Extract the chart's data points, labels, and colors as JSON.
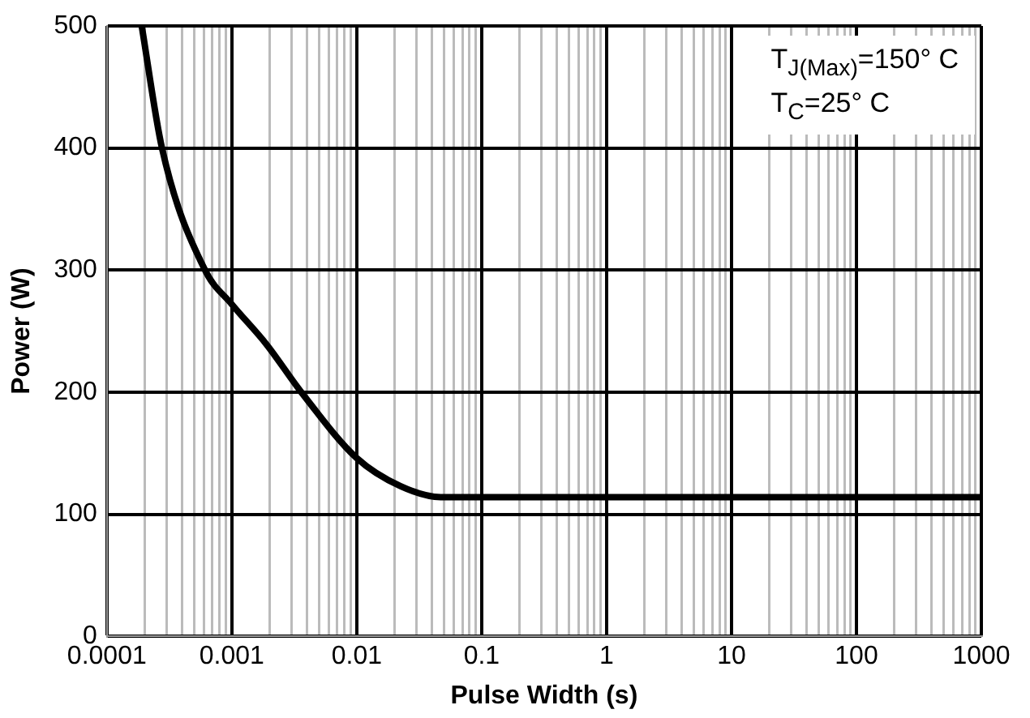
{
  "chart_data": {
    "type": "line",
    "xlabel": "Pulse Width (s)",
    "ylabel": "Power (W)",
    "annotations": [
      "T$_{J(Max)}$=150° C",
      "T$_{C}$=25° C"
    ],
    "series": [
      {
        "color": "#000000",
        "x": [
          0.00019,
          0.000276,
          0.00061,
          0.001,
          0.0019,
          0.0036,
          0.01,
          0.0224,
          0.047,
          0.1,
          1,
          10,
          100,
          1000
        ],
        "values": [
          500,
          400,
          300,
          272,
          239,
          200,
          146,
          123,
          114,
          114,
          114,
          114,
          114,
          114
        ]
      }
    ],
    "log": "x",
    "xlim": [
      0.0001,
      1000
    ],
    "ylim": [
      0,
      500
    ],
    "yticks": [
      0,
      100,
      200,
      300,
      400,
      500
    ],
    "xticks": [
      {
        "value": 0.0001,
        "label": "0.0001"
      },
      {
        "value": 0.0002,
        "label": null
      },
      {
        "value": 0.0003,
        "label": null
      },
      {
        "value": 0.0004,
        "label": null
      },
      {
        "value": 0.0005,
        "label": null
      },
      {
        "value": 0.0006,
        "label": null
      },
      {
        "value": 0.0007,
        "label": null
      },
      {
        "value": 0.0008,
        "label": null
      },
      {
        "value": 0.0009,
        "label": null
      },
      {
        "value": 0.001,
        "label": "0.001"
      },
      {
        "value": 0.002,
        "label": null
      },
      {
        "value": 0.003,
        "label": null
      },
      {
        "value": 0.004,
        "label": null
      },
      {
        "value": 0.005,
        "label": null
      },
      {
        "value": 0.006,
        "label": null
      },
      {
        "value": 0.007,
        "label": null
      },
      {
        "value": 0.008,
        "label": null
      },
      {
        "value": 0.009,
        "label": null
      },
      {
        "value": 0.01,
        "label": "0.01"
      },
      {
        "value": 0.02,
        "label": null
      },
      {
        "value": 0.03,
        "label": null
      },
      {
        "value": 0.04,
        "label": null
      },
      {
        "value": 0.05,
        "label": null
      },
      {
        "value": 0.06,
        "label": null
      },
      {
        "value": 0.07,
        "label": null
      },
      {
        "value": 0.08,
        "label": null
      },
      {
        "value": 0.09,
        "label": null
      },
      {
        "value": 0.1,
        "label": "0.1"
      },
      {
        "value": 0.2,
        "label": null
      },
      {
        "value": 0.3,
        "label": null
      },
      {
        "value": 0.4,
        "label": null
      },
      {
        "value": 0.5,
        "label": null
      },
      {
        "value": 0.6,
        "label": null
      },
      {
        "value": 0.7,
        "label": null
      },
      {
        "value": 0.8,
        "label": null
      },
      {
        "value": 0.9,
        "label": null
      },
      1,
      {
        "value": 2,
        "label": null
      },
      {
        "value": 3,
        "label": null
      },
      {
        "value": 4,
        "label": null
      },
      {
        "value": 5,
        "label": null
      },
      {
        "value": 6,
        "label": null
      },
      {
        "value": 7,
        "label": null
      },
      {
        "value": 8,
        "label": null
      },
      {
        "value": 9,
        "label": null
      },
      10,
      {
        "value": 20,
        "label": null
      },
      {
        "value": 30,
        "label": null
      },
      {
        "value": 40,
        "label": null
      },
      {
        "value": 50,
        "label": null
      },
      {
        "value": 60,
        "label": null
      },
      {
        "value": 70,
        "label": null
      },
      {
        "value": 80,
        "label": null
      },
      {
        "value": 90,
        "label": null
      },
      100,
      {
        "value": 200,
        "label": null
      },
      {
        "value": 300,
        "label": null
      },
      {
        "value": 400,
        "label": null
      },
      {
        "value": 500,
        "label": null
      },
      {
        "value": 600,
        "label": null
      },
      {
        "value": 700,
        "label": null
      },
      {
        "value": 800,
        "label": null
      },
      {
        "value": 900,
        "label": null
      },
      1000
    ],
    "grid": true,
    "legend": false,
    "marker": "none",
    "line_style": "solid"
  }
}
